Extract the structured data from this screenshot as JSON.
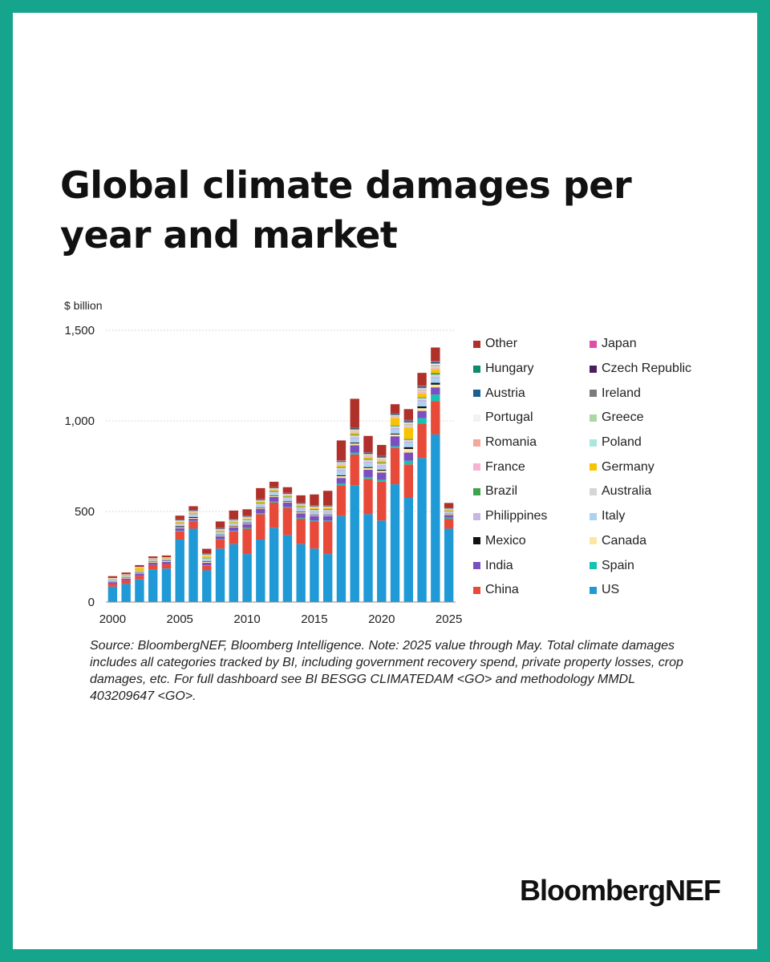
{
  "title": "Global climate damages per year and market",
  "brand": "BloombergNEF",
  "colors": {
    "frame": "#14a58c"
  },
  "chart_data": {
    "type": "bar",
    "stacked": true,
    "title": "Global climate damages per year and market",
    "ylabel": "$ billion",
    "xlabel": "",
    "ylim": [
      0,
      1500
    ],
    "yticks": [
      0,
      500,
      1000,
      1500
    ],
    "ytick_labels": [
      "0",
      "500",
      "1,000",
      "1,500"
    ],
    "xticks": [
      2000,
      2005,
      2010,
      2015,
      2020,
      2025
    ],
    "grid": true,
    "legend_position": "right",
    "categories": [
      2000,
      2001,
      2002,
      2003,
      2004,
      2005,
      2006,
      2007,
      2008,
      2009,
      2010,
      2011,
      2012,
      2013,
      2014,
      2015,
      2016,
      2017,
      2018,
      2019,
      2020,
      2021,
      2022,
      2023,
      2024,
      2025
    ],
    "series": [
      {
        "name": "US",
        "color": "#1f9ad6",
        "values": [
          85,
          100,
          125,
          180,
          185,
          345,
          405,
          175,
          295,
          320,
          265,
          345,
          410,
          370,
          320,
          295,
          265,
          475,
          645,
          485,
          450,
          650,
          575,
          795,
          925,
          405
        ]
      },
      {
        "name": "China",
        "color": "#e84a3a",
        "values": [
          15,
          20,
          20,
          25,
          25,
          45,
          40,
          25,
          50,
          70,
          140,
          140,
          140,
          150,
          140,
          150,
          180,
          170,
          170,
          195,
          215,
          200,
          185,
          190,
          185,
          55
        ]
      },
      {
        "name": "Spain",
        "color": "#16c3b0",
        "values": [
          0,
          0,
          0,
          0,
          0,
          3,
          3,
          2,
          3,
          3,
          5,
          5,
          5,
          5,
          5,
          5,
          5,
          10,
          10,
          10,
          10,
          10,
          20,
          30,
          35,
          6
        ]
      },
      {
        "name": "India",
        "color": "#7b4fbf",
        "values": [
          10,
          10,
          12,
          12,
          12,
          15,
          12,
          15,
          15,
          20,
          20,
          25,
          25,
          25,
          25,
          25,
          25,
          30,
          40,
          40,
          40,
          55,
          45,
          40,
          40,
          15
        ]
      },
      {
        "name": "Canada",
        "color": "#fbe7a0",
        "values": [
          4,
          4,
          4,
          4,
          4,
          5,
          5,
          5,
          5,
          5,
          5,
          5,
          5,
          5,
          5,
          5,
          5,
          10,
          10,
          10,
          10,
          10,
          20,
          15,
          15,
          5
        ]
      },
      {
        "name": "Mexico",
        "color": "#111111",
        "values": [
          2,
          2,
          2,
          2,
          2,
          5,
          5,
          3,
          3,
          3,
          3,
          3,
          3,
          3,
          3,
          3,
          3,
          5,
          5,
          5,
          5,
          5,
          10,
          10,
          10,
          2
        ]
      },
      {
        "name": "Italy",
        "color": "#a9d3f0",
        "values": [
          2,
          2,
          3,
          3,
          3,
          5,
          5,
          5,
          5,
          5,
          5,
          10,
          10,
          10,
          10,
          10,
          10,
          20,
          20,
          20,
          15,
          20,
          20,
          25,
          25,
          5
        ]
      },
      {
        "name": "Philippines",
        "color": "#c8b6e6",
        "values": [
          3,
          3,
          3,
          3,
          3,
          5,
          5,
          5,
          5,
          5,
          5,
          5,
          5,
          5,
          10,
          10,
          10,
          10,
          10,
          10,
          10,
          10,
          10,
          10,
          10,
          3
        ]
      },
      {
        "name": "Australia",
        "color": "#d6d6d6",
        "values": [
          2,
          2,
          2,
          2,
          2,
          5,
          5,
          5,
          5,
          5,
          5,
          5,
          5,
          5,
          5,
          5,
          5,
          10,
          10,
          10,
          10,
          10,
          10,
          10,
          10,
          3
        ]
      },
      {
        "name": "Brazil",
        "color": "#3fa34d",
        "values": [
          2,
          2,
          2,
          2,
          2,
          3,
          3,
          3,
          3,
          3,
          3,
          5,
          5,
          5,
          5,
          5,
          5,
          5,
          5,
          5,
          5,
          5,
          5,
          5,
          10,
          3
        ]
      },
      {
        "name": "Germany",
        "color": "#f8c300",
        "values": [
          2,
          2,
          15,
          3,
          3,
          5,
          5,
          10,
          5,
          5,
          5,
          5,
          5,
          5,
          5,
          5,
          5,
          10,
          10,
          10,
          10,
          40,
          60,
          20,
          20,
          5
        ]
      },
      {
        "name": "France",
        "color": "#f6b3d1",
        "values": [
          2,
          2,
          2,
          2,
          2,
          3,
          3,
          3,
          3,
          3,
          3,
          3,
          3,
          3,
          3,
          3,
          3,
          5,
          5,
          5,
          5,
          5,
          10,
          10,
          10,
          2
        ]
      },
      {
        "name": "Poland",
        "color": "#a8e6e0",
        "values": [
          1,
          1,
          1,
          1,
          1,
          2,
          2,
          2,
          2,
          2,
          2,
          2,
          2,
          2,
          2,
          2,
          2,
          3,
          3,
          3,
          3,
          3,
          5,
          5,
          5,
          2
        ]
      },
      {
        "name": "Romania",
        "color": "#f4a79a",
        "values": [
          1,
          1,
          1,
          1,
          1,
          2,
          2,
          2,
          2,
          2,
          2,
          2,
          2,
          2,
          2,
          2,
          2,
          3,
          3,
          3,
          3,
          3,
          5,
          5,
          5,
          2
        ]
      },
      {
        "name": "Greece",
        "color": "#a9d8a7",
        "values": [
          1,
          1,
          1,
          1,
          1,
          2,
          2,
          2,
          2,
          2,
          2,
          2,
          2,
          2,
          2,
          2,
          2,
          3,
          3,
          3,
          3,
          3,
          5,
          5,
          5,
          2
        ]
      },
      {
        "name": "Portugal",
        "color": "#f2f2f2",
        "values": [
          1,
          1,
          1,
          1,
          1,
          2,
          2,
          2,
          2,
          2,
          2,
          2,
          2,
          2,
          2,
          2,
          2,
          3,
          3,
          3,
          3,
          3,
          5,
          5,
          5,
          2
        ]
      },
      {
        "name": "Ireland",
        "color": "#7a7a7a",
        "values": [
          0,
          0,
          0,
          0,
          0,
          1,
          1,
          1,
          1,
          1,
          1,
          1,
          1,
          1,
          1,
          1,
          1,
          2,
          2,
          2,
          2,
          2,
          3,
          3,
          3,
          1
        ]
      },
      {
        "name": "Austria",
        "color": "#1a5f8f",
        "values": [
          0,
          0,
          0,
          0,
          0,
          1,
          1,
          1,
          1,
          1,
          1,
          1,
          1,
          1,
          1,
          1,
          1,
          2,
          2,
          2,
          2,
          2,
          3,
          3,
          3,
          1
        ]
      },
      {
        "name": "Czech Republic",
        "color": "#4a1f5c",
        "values": [
          0,
          0,
          0,
          0,
          0,
          1,
          1,
          1,
          1,
          1,
          1,
          1,
          1,
          1,
          1,
          1,
          1,
          2,
          2,
          2,
          2,
          2,
          3,
          3,
          3,
          1
        ]
      },
      {
        "name": "Hungary",
        "color": "#0f8a6e",
        "values": [
          0,
          0,
          0,
          0,
          0,
          1,
          1,
          1,
          1,
          1,
          1,
          1,
          1,
          1,
          1,
          1,
          1,
          2,
          2,
          2,
          2,
          2,
          3,
          3,
          3,
          1
        ]
      },
      {
        "name": "Japan",
        "color": "#e04fa5",
        "values": [
          0,
          0,
          0,
          0,
          0,
          1,
          1,
          1,
          1,
          1,
          1,
          1,
          1,
          1,
          1,
          1,
          1,
          2,
          2,
          2,
          2,
          2,
          3,
          3,
          3,
          1
        ]
      },
      {
        "name": "Other",
        "color": "#b0312a",
        "values": [
          10,
          10,
          10,
          10,
          10,
          20,
          20,
          25,
          35,
          45,
          35,
          60,
          30,
          30,
          40,
          60,
          80,
          110,
          160,
          90,
          60,
          50,
          60,
          70,
          75,
          25
        ]
      }
    ],
    "legend": [
      {
        "name": "Other",
        "color": "#b0312a"
      },
      {
        "name": "Japan",
        "color": "#e04fa5"
      },
      {
        "name": "Hungary",
        "color": "#0f8a6e"
      },
      {
        "name": "Czech Republic",
        "color": "#4a1f5c"
      },
      {
        "name": "Austria",
        "color": "#1a5f8f"
      },
      {
        "name": "Ireland",
        "color": "#7a7a7a"
      },
      {
        "name": "Portugal",
        "color": "#f2f2f2"
      },
      {
        "name": "Greece",
        "color": "#a9d8a7"
      },
      {
        "name": "Romania",
        "color": "#f4a79a"
      },
      {
        "name": "Poland",
        "color": "#a8e6e0"
      },
      {
        "name": "France",
        "color": "#f6b3d1"
      },
      {
        "name": "Germany",
        "color": "#f8c300"
      },
      {
        "name": "Brazil",
        "color": "#3fa34d"
      },
      {
        "name": "Australia",
        "color": "#d6d6d6"
      },
      {
        "name": "Philippines",
        "color": "#c8b6e6"
      },
      {
        "name": "Italy",
        "color": "#a9d3f0"
      },
      {
        "name": "Mexico",
        "color": "#111111"
      },
      {
        "name": "Canada",
        "color": "#fbe7a0"
      },
      {
        "name": "India",
        "color": "#7b4fbf"
      },
      {
        "name": "Spain",
        "color": "#16c3b0"
      },
      {
        "name": "China",
        "color": "#e84a3a"
      },
      {
        "name": "US",
        "color": "#1f9ad6"
      }
    ]
  },
  "source_note": "Source: BloombergNEF, Bloomberg Intelligence. Note: 2025 value through May. Total climate damages includes all categories tracked by BI, including government recovery spend, private property losses, crop damages, etc. For full dashboard see BI BESGG CLIMATEDAM <GO> and methodology MMDL 403209647 <GO>."
}
